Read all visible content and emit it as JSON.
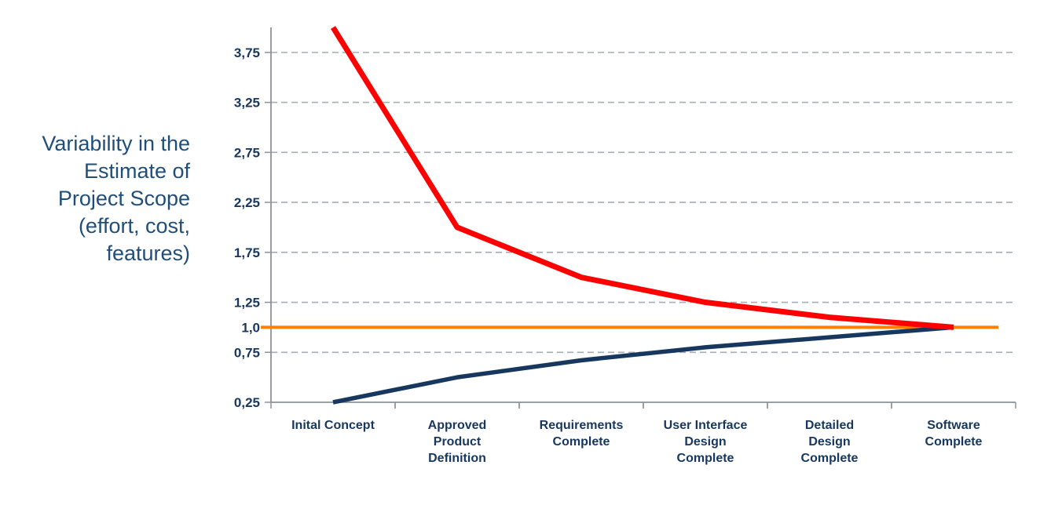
{
  "chart_data": {
    "type": "line",
    "title": "",
    "ylabel": "Variability in the Estimate of Project Scope (effort, cost, features)",
    "ylabel_lines": [
      "Variability in the",
      "Estimate of",
      "Project Scope",
      "(effort, cost,",
      "features)"
    ],
    "xlabel": "",
    "legend": "none",
    "grid": "dashed-horizontal",
    "ylim": [
      0.25,
      4.0
    ],
    "categories": [
      "Inital Concept",
      "Approved Product Definition",
      "Requirements Complete",
      "User Interface Design Complete",
      "Detailed Design Complete",
      "Software Complete"
    ],
    "category_label_lines": [
      [
        "Inital Concept"
      ],
      [
        "Approved",
        "Product",
        "Definition"
      ],
      [
        "Requirements",
        "Complete"
      ],
      [
        "User Interface",
        "Design",
        "Complete"
      ],
      [
        "Detailed",
        "Design",
        "Complete"
      ],
      [
        "Software",
        "Complete"
      ]
    ],
    "y_ticks": [
      {
        "label": "3,75",
        "value": 3.75,
        "grid": "dashed"
      },
      {
        "label": "3,25",
        "value": 3.25,
        "grid": "dashed"
      },
      {
        "label": "2,75",
        "value": 2.75,
        "grid": "dashed"
      },
      {
        "label": "2,25",
        "value": 2.25,
        "grid": "dashed"
      },
      {
        "label": "1,75",
        "value": 1.75,
        "grid": "dashed"
      },
      {
        "label": "1,25",
        "value": 1.25,
        "grid": "dashed"
      },
      {
        "label": "1,0",
        "value": 1.0,
        "grid": "none"
      },
      {
        "label": "0,75",
        "value": 0.75,
        "grid": "dashed"
      },
      {
        "label": "0,25",
        "value": 0.25,
        "grid": "none"
      }
    ],
    "series": [
      {
        "name": "upper-bound-estimate",
        "color": "#FE0000",
        "width": 7,
        "values": [
          4.0,
          2.0,
          1.5,
          1.25,
          1.1,
          1.0
        ]
      },
      {
        "name": "lower-bound-estimate",
        "color": "#17375E",
        "width": 5.5,
        "values": [
          0.25,
          0.5,
          0.67,
          0.8,
          0.9,
          1.0
        ]
      }
    ],
    "baseline": {
      "name": "nominal-estimate",
      "color": "#FF8000",
      "width": 4,
      "value": 1.0
    },
    "colors": {
      "upper_line": "#FE0000",
      "lower_line": "#17375E",
      "baseline_line": "#FF8000",
      "text": "#17375E",
      "title_text": "#1F4E79",
      "axis": "#8C9296",
      "gridline": "#A6ACB3"
    }
  }
}
